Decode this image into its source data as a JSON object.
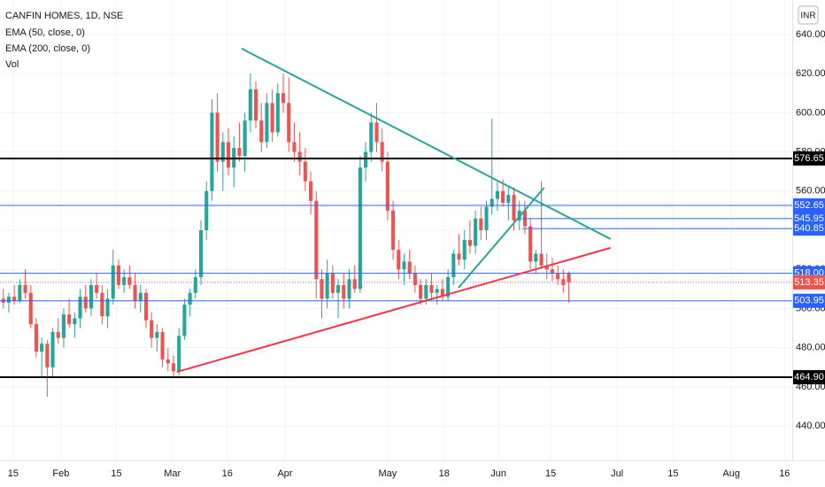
{
  "chart_data": {
    "type": "candlestick",
    "title": "CANFIN HOMES, 1D, NSE",
    "indicators": [
      "EMA (50, close, 0)",
      "EMA (200, close, 0)",
      "Vol"
    ],
    "currency": "INR",
    "up_color": "#26a69a",
    "down_color": "#ef5350",
    "ohlc": [
      [
        505,
        510,
        500,
        503
      ],
      [
        503,
        508,
        498,
        506
      ],
      [
        506,
        512,
        502,
        504
      ],
      [
        504,
        515,
        503,
        512
      ],
      [
        512,
        520,
        505,
        508
      ],
      [
        508,
        512,
        490,
        492
      ],
      [
        492,
        495,
        475,
        478
      ],
      [
        478,
        485,
        465,
        482
      ],
      [
        482,
        484,
        455,
        470
      ],
      [
        470,
        490,
        465,
        488
      ],
      [
        488,
        495,
        482,
        485
      ],
      [
        485,
        500,
        480,
        497
      ],
      [
        497,
        505,
        490,
        492
      ],
      [
        492,
        498,
        485,
        495
      ],
      [
        495,
        510,
        490,
        506
      ],
      [
        506,
        512,
        498,
        500
      ],
      [
        500,
        515,
        496,
        512
      ],
      [
        512,
        518,
        505,
        508
      ],
      [
        508,
        512,
        492,
        496
      ],
      [
        496,
        510,
        490,
        505
      ],
      [
        505,
        530,
        502,
        522
      ],
      [
        522,
        525,
        510,
        512
      ],
      [
        512,
        520,
        508,
        516
      ],
      [
        516,
        522,
        510,
        512
      ],
      [
        512,
        518,
        500,
        504
      ],
      [
        504,
        512,
        498,
        508
      ],
      [
        508,
        510,
        490,
        494
      ],
      [
        494,
        498,
        480,
        485
      ],
      [
        485,
        492,
        478,
        488
      ],
      [
        488,
        490,
        470,
        474
      ],
      [
        474,
        480,
        468,
        472
      ],
      [
        472,
        476,
        465,
        468
      ],
      [
        468,
        490,
        466,
        486
      ],
      [
        486,
        505,
        484,
        502
      ],
      [
        502,
        510,
        496,
        508
      ],
      [
        508,
        520,
        505,
        516
      ],
      [
        516,
        545,
        512,
        540
      ],
      [
        540,
        565,
        535,
        560
      ],
      [
        560,
        607,
        555,
        600
      ],
      [
        600,
        610,
        570,
        575
      ],
      [
        575,
        590,
        560,
        585
      ],
      [
        585,
        592,
        568,
        572
      ],
      [
        572,
        588,
        562,
        582
      ],
      [
        582,
        595,
        575,
        578
      ],
      [
        578,
        600,
        570,
        596
      ],
      [
        596,
        620,
        590,
        612
      ],
      [
        612,
        616,
        592,
        596
      ],
      [
        596,
        605,
        580,
        585
      ],
      [
        585,
        610,
        582,
        605
      ],
      [
        605,
        612,
        585,
        590
      ],
      [
        590,
        615,
        588,
        610
      ],
      [
        610,
        620,
        600,
        605
      ],
      [
        605,
        618,
        580,
        585
      ],
      [
        585,
        595,
        575,
        580
      ],
      [
        580,
        590,
        568,
        575
      ],
      [
        575,
        582,
        560,
        565
      ],
      [
        565,
        570,
        548,
        555
      ],
      [
        555,
        560,
        505,
        515
      ],
      [
        515,
        520,
        495,
        505
      ],
      [
        505,
        525,
        500,
        518
      ],
      [
        518,
        522,
        505,
        508
      ],
      [
        508,
        515,
        495,
        512
      ],
      [
        512,
        518,
        500,
        505
      ],
      [
        505,
        520,
        500,
        515
      ],
      [
        515,
        522,
        508,
        510
      ],
      [
        510,
        578,
        508,
        572
      ],
      [
        572,
        585,
        565,
        580
      ],
      [
        580,
        600,
        575,
        595
      ],
      [
        595,
        605,
        580,
        585
      ],
      [
        585,
        592,
        570,
        575
      ],
      [
        575,
        580,
        545,
        550
      ],
      [
        550,
        555,
        525,
        530
      ],
      [
        530,
        535,
        515,
        520
      ],
      [
        520,
        528,
        512,
        524
      ],
      [
        524,
        530,
        515,
        518
      ],
      [
        518,
        522,
        508,
        512
      ],
      [
        512,
        515,
        502,
        505
      ],
      [
        505,
        515,
        502,
        512
      ],
      [
        512,
        518,
        505,
        508
      ],
      [
        508,
        512,
        502,
        510
      ],
      [
        510,
        515,
        504,
        506
      ],
      [
        506,
        520,
        504,
        516
      ],
      [
        516,
        530,
        512,
        528
      ],
      [
        528,
        538,
        522,
        525
      ],
      [
        525,
        540,
        520,
        535
      ],
      [
        535,
        545,
        528,
        532
      ],
      [
        532,
        550,
        528,
        546
      ],
      [
        546,
        552,
        535,
        540
      ],
      [
        540,
        555,
        535,
        552
      ],
      [
        552,
        597,
        548,
        556
      ],
      [
        556,
        565,
        550,
        560
      ],
      [
        560,
        566,
        552,
        554
      ],
      [
        554,
        562,
        545,
        558
      ],
      [
        558,
        562,
        540,
        545
      ],
      [
        545,
        555,
        540,
        550
      ],
      [
        550,
        555,
        538,
        542
      ],
      [
        542,
        546,
        520,
        524
      ],
      [
        524,
        530,
        518,
        528
      ],
      [
        528,
        565,
        520,
        522
      ],
      [
        522,
        528,
        515,
        520
      ],
      [
        520,
        526,
        514,
        518
      ],
      [
        518,
        522,
        512,
        515
      ],
      [
        515,
        520,
        508,
        512
      ],
      [
        518,
        519,
        503,
        513.35
      ]
    ],
    "xlim": [
      -0.6,
      143.7
    ],
    "xticks": [
      {
        "value": 1.8,
        "label": "15"
      },
      {
        "value": 10.5,
        "label": "Feb"
      },
      {
        "value": 20.6,
        "label": "15"
      },
      {
        "value": 30.8,
        "label": "Mar"
      },
      {
        "value": 40.8,
        "label": "16"
      },
      {
        "value": 51.3,
        "label": "Apr"
      },
      {
        "value": 70,
        "label": "May"
      },
      {
        "value": 80.3,
        "label": "18"
      },
      {
        "value": 90.2,
        "label": "Jun"
      },
      {
        "value": 99.7,
        "label": "15"
      },
      {
        "value": 111.8,
        "label": "Jul"
      },
      {
        "value": 122,
        "label": "15"
      },
      {
        "value": 132.6,
        "label": "Aug"
      },
      {
        "value": 142.3,
        "label": "16"
      }
    ],
    "ylim": [
      422.4,
      657.6
    ],
    "yticks": [
      {
        "value": 640,
        "label": "640.00"
      },
      {
        "value": 620,
        "label": "620.00"
      },
      {
        "value": 600,
        "label": "600.00"
      },
      {
        "value": 580,
        "label": "580.00"
      },
      {
        "value": 560,
        "label": "560.00"
      },
      {
        "value": 540,
        "label": "540.00"
      },
      {
        "value": 520,
        "label": "520.00"
      },
      {
        "value": 500,
        "label": "500.00"
      },
      {
        "value": 480,
        "label": "480.00"
      },
      {
        "value": 460,
        "label": "460.00"
      },
      {
        "value": 440,
        "label": "440.00"
      }
    ],
    "levels": [
      {
        "price": 576.65,
        "color": "#000000"
      },
      {
        "price": 552.65,
        "color": "#2962ff"
      },
      {
        "price": 545.95,
        "color": "#2962ff",
        "from": 94.5
      },
      {
        "price": 540.85,
        "color": "#2962ff",
        "from": 94.5
      },
      {
        "price": {
          "value": 518,
          "label": "518.00"
        },
        "color": "#2962ff"
      },
      {
        "price": 503.95,
        "color": "#2962ff"
      },
      {
        "price": {
          "value": 464.9,
          "label": "464.90"
        },
        "color": "#000000"
      }
    ],
    "last_price": {
      "price": 513.35,
      "color": "#ef5350"
    },
    "trendlines": [
      {
        "color": "#26a69a",
        "start": [
          43.4,
          632.8
        ],
        "end": [
          110.6,
          535.5
        ]
      },
      {
        "color": "#f23645",
        "start": [
          31.6,
          467.6
        ],
        "end": [
          110.6,
          531.0
        ]
      },
      {
        "color": "#26a69a",
        "start": [
          82.9,
          510.6
        ],
        "end": [
          98.5,
          561.7
        ]
      }
    ]
  }
}
